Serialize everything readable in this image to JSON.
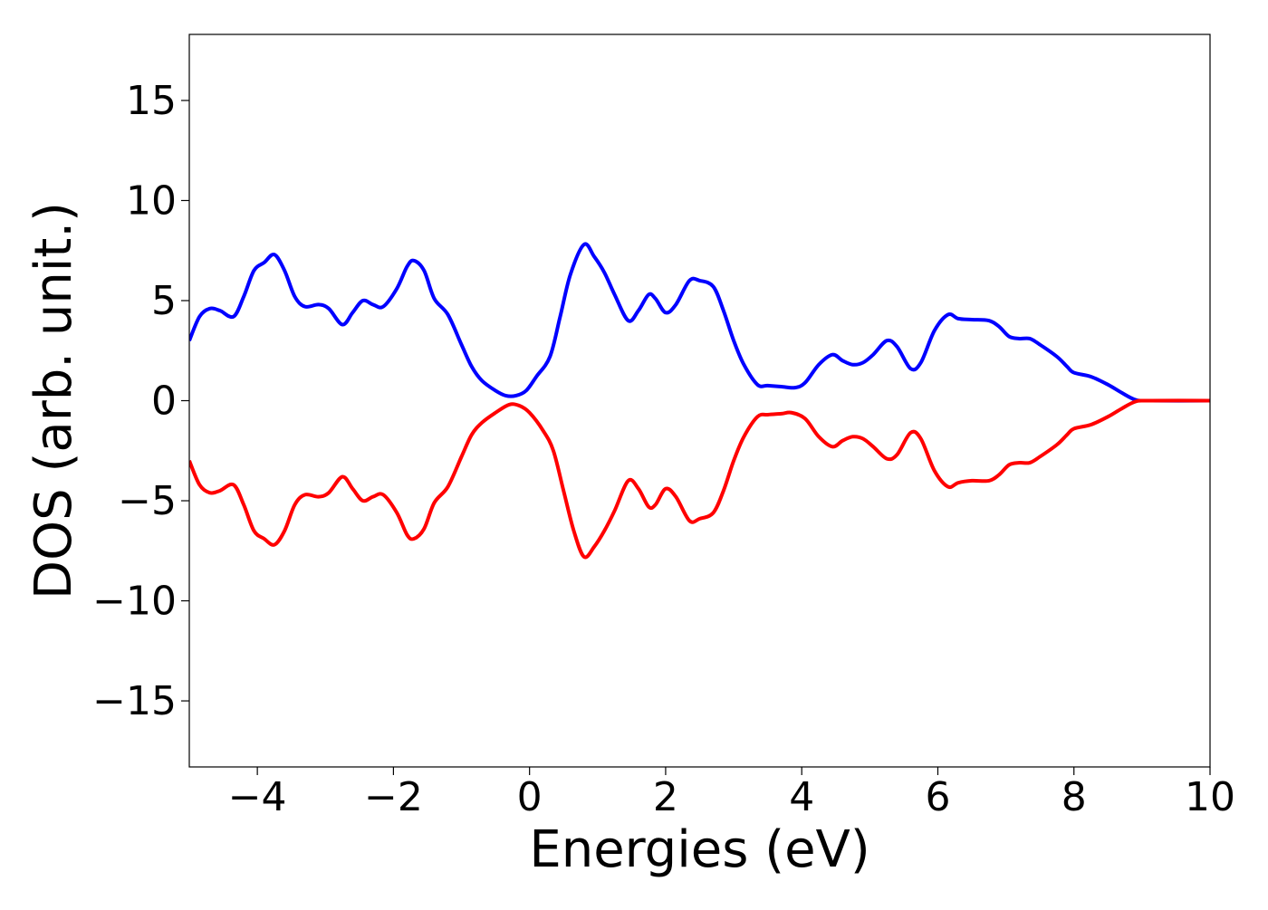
{
  "chart_data": {
    "type": "line",
    "xlabel": "Energies (eV)",
    "ylabel": "DOS (arb. unit.)",
    "xlim": [
      -5,
      10
    ],
    "ylim": [
      -18.3,
      18.3
    ],
    "xticks": [
      -4,
      -2,
      0,
      2,
      4,
      6,
      8,
      10
    ],
    "xtick_labels": [
      "−4",
      "−2",
      "0",
      "2",
      "4",
      "6",
      "8",
      "10"
    ],
    "yticks": [
      -15,
      -10,
      -5,
      0,
      5,
      10,
      15
    ],
    "ytick_labels": [
      "−15",
      "−10",
      "−5",
      "0",
      "5",
      "10",
      "15"
    ],
    "grid": false,
    "legend": false,
    "series": [
      {
        "color": "#0000ff",
        "points": [
          [
            -5.0,
            3.0
          ],
          [
            -4.85,
            4.2
          ],
          [
            -4.7,
            4.6
          ],
          [
            -4.55,
            4.5
          ],
          [
            -4.35,
            4.2
          ],
          [
            -4.2,
            5.2
          ],
          [
            -4.05,
            6.5
          ],
          [
            -3.9,
            6.9
          ],
          [
            -3.75,
            7.3
          ],
          [
            -3.6,
            6.5
          ],
          [
            -3.45,
            5.2
          ],
          [
            -3.3,
            4.7
          ],
          [
            -3.1,
            4.8
          ],
          [
            -2.95,
            4.6
          ],
          [
            -2.75,
            3.8
          ],
          [
            -2.6,
            4.4
          ],
          [
            -2.45,
            5.0
          ],
          [
            -2.3,
            4.8
          ],
          [
            -2.15,
            4.7
          ],
          [
            -1.95,
            5.6
          ],
          [
            -1.8,
            6.7
          ],
          [
            -1.7,
            7.0
          ],
          [
            -1.55,
            6.5
          ],
          [
            -1.4,
            5.1
          ],
          [
            -1.2,
            4.3
          ],
          [
            -1.0,
            2.8
          ],
          [
            -0.85,
            1.7
          ],
          [
            -0.7,
            1.0
          ],
          [
            -0.5,
            0.5
          ],
          [
            -0.35,
            0.25
          ],
          [
            -0.2,
            0.25
          ],
          [
            -0.05,
            0.5
          ],
          [
            0.1,
            1.2
          ],
          [
            0.3,
            2.2
          ],
          [
            0.45,
            4.2
          ],
          [
            0.6,
            6.3
          ],
          [
            0.8,
            7.8
          ],
          [
            0.95,
            7.2
          ],
          [
            1.1,
            6.4
          ],
          [
            1.25,
            5.3
          ],
          [
            1.45,
            4.0
          ],
          [
            1.6,
            4.5
          ],
          [
            1.75,
            5.3
          ],
          [
            1.85,
            5.1
          ],
          [
            2.0,
            4.4
          ],
          [
            2.15,
            4.8
          ],
          [
            2.35,
            6.0
          ],
          [
            2.5,
            6.0
          ],
          [
            2.7,
            5.7
          ],
          [
            2.85,
            4.5
          ],
          [
            3.0,
            3.0
          ],
          [
            3.15,
            1.8
          ],
          [
            3.35,
            0.8
          ],
          [
            3.5,
            0.75
          ],
          [
            3.7,
            0.7
          ],
          [
            3.9,
            0.65
          ],
          [
            4.05,
            0.9
          ],
          [
            4.25,
            1.8
          ],
          [
            4.45,
            2.3
          ],
          [
            4.6,
            2.0
          ],
          [
            4.75,
            1.8
          ],
          [
            4.9,
            1.9
          ],
          [
            5.05,
            2.3
          ],
          [
            5.25,
            3.0
          ],
          [
            5.4,
            2.7
          ],
          [
            5.6,
            1.6
          ],
          [
            5.75,
            1.9
          ],
          [
            5.95,
            3.5
          ],
          [
            6.15,
            4.3
          ],
          [
            6.3,
            4.1
          ],
          [
            6.5,
            4.05
          ],
          [
            6.75,
            4.0
          ],
          [
            6.9,
            3.7
          ],
          [
            7.05,
            3.2
          ],
          [
            7.2,
            3.1
          ],
          [
            7.35,
            3.1
          ],
          [
            7.5,
            2.8
          ],
          [
            7.75,
            2.2
          ],
          [
            7.9,
            1.7
          ],
          [
            8.0,
            1.4
          ],
          [
            8.25,
            1.2
          ],
          [
            8.5,
            0.8
          ],
          [
            8.7,
            0.4
          ],
          [
            8.9,
            0.05
          ],
          [
            9.1,
            0.0
          ],
          [
            10.0,
            0.0
          ]
        ]
      },
      {
        "color": "#ff0000",
        "points": [
          [
            -5.0,
            -3.0
          ],
          [
            -4.85,
            -4.2
          ],
          [
            -4.7,
            -4.6
          ],
          [
            -4.55,
            -4.5
          ],
          [
            -4.35,
            -4.2
          ],
          [
            -4.2,
            -5.2
          ],
          [
            -4.05,
            -6.5
          ],
          [
            -3.9,
            -6.9
          ],
          [
            -3.75,
            -7.2
          ],
          [
            -3.6,
            -6.5
          ],
          [
            -3.45,
            -5.2
          ],
          [
            -3.3,
            -4.7
          ],
          [
            -3.1,
            -4.8
          ],
          [
            -2.95,
            -4.6
          ],
          [
            -2.75,
            -3.8
          ],
          [
            -2.6,
            -4.4
          ],
          [
            -2.45,
            -5.0
          ],
          [
            -2.3,
            -4.8
          ],
          [
            -2.15,
            -4.7
          ],
          [
            -1.95,
            -5.6
          ],
          [
            -1.8,
            -6.7
          ],
          [
            -1.7,
            -6.9
          ],
          [
            -1.55,
            -6.4
          ],
          [
            -1.4,
            -5.1
          ],
          [
            -1.2,
            -4.3
          ],
          [
            -1.0,
            -2.8
          ],
          [
            -0.85,
            -1.7
          ],
          [
            -0.7,
            -1.1
          ],
          [
            -0.5,
            -0.6
          ],
          [
            -0.3,
            -0.2
          ],
          [
            -0.15,
            -0.25
          ],
          [
            0.0,
            -0.6
          ],
          [
            0.2,
            -1.5
          ],
          [
            0.35,
            -2.5
          ],
          [
            0.5,
            -4.5
          ],
          [
            0.65,
            -6.5
          ],
          [
            0.8,
            -7.8
          ],
          [
            0.95,
            -7.3
          ],
          [
            1.1,
            -6.5
          ],
          [
            1.25,
            -5.5
          ],
          [
            1.45,
            -4.0
          ],
          [
            1.6,
            -4.4
          ],
          [
            1.75,
            -5.3
          ],
          [
            1.85,
            -5.2
          ],
          [
            2.0,
            -4.4
          ],
          [
            2.15,
            -4.8
          ],
          [
            2.35,
            -6.0
          ],
          [
            2.5,
            -5.9
          ],
          [
            2.7,
            -5.6
          ],
          [
            2.85,
            -4.5
          ],
          [
            3.0,
            -3.0
          ],
          [
            3.15,
            -1.8
          ],
          [
            3.35,
            -0.8
          ],
          [
            3.5,
            -0.7
          ],
          [
            3.7,
            -0.65
          ],
          [
            3.85,
            -0.6
          ],
          [
            4.05,
            -0.9
          ],
          [
            4.25,
            -1.8
          ],
          [
            4.45,
            -2.3
          ],
          [
            4.6,
            -2.0
          ],
          [
            4.75,
            -1.8
          ],
          [
            4.9,
            -1.9
          ],
          [
            5.05,
            -2.3
          ],
          [
            5.25,
            -2.9
          ],
          [
            5.4,
            -2.7
          ],
          [
            5.6,
            -1.6
          ],
          [
            5.75,
            -1.9
          ],
          [
            5.95,
            -3.5
          ],
          [
            6.15,
            -4.3
          ],
          [
            6.3,
            -4.1
          ],
          [
            6.5,
            -4.0
          ],
          [
            6.75,
            -4.0
          ],
          [
            6.9,
            -3.7
          ],
          [
            7.05,
            -3.2
          ],
          [
            7.2,
            -3.1
          ],
          [
            7.35,
            -3.1
          ],
          [
            7.5,
            -2.8
          ],
          [
            7.75,
            -2.2
          ],
          [
            7.9,
            -1.7
          ],
          [
            8.0,
            -1.4
          ],
          [
            8.25,
            -1.2
          ],
          [
            8.5,
            -0.8
          ],
          [
            8.7,
            -0.4
          ],
          [
            8.9,
            -0.05
          ],
          [
            9.1,
            0.0
          ],
          [
            10.0,
            0.0
          ]
        ]
      }
    ]
  }
}
